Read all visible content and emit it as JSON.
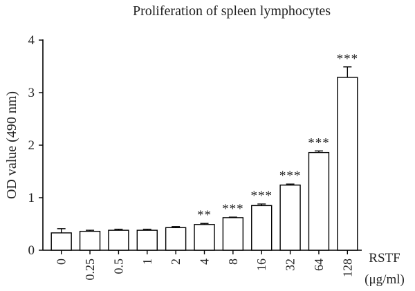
{
  "chart_data": {
    "type": "bar",
    "title": "Proliferation of spleen lymphocytes",
    "ylabel": "OD value (490 nm)",
    "xlabel": "RSTF",
    "xunit": "(μg/ml)",
    "ylim": [
      0,
      4
    ],
    "yticks": [
      "0",
      "1",
      "2",
      "3",
      "4"
    ],
    "categories": [
      "0",
      "0.25",
      "0.5",
      "1",
      "2",
      "4",
      "8",
      "16",
      "32",
      "64",
      "128"
    ],
    "values": [
      0.33,
      0.36,
      0.38,
      0.38,
      0.43,
      0.49,
      0.62,
      0.85,
      1.24,
      1.86,
      3.29
    ],
    "errors": [
      0.08,
      0.02,
      0.02,
      0.02,
      0.02,
      0.02,
      0.01,
      0.03,
      0.02,
      0.03,
      0.2
    ],
    "significance": [
      "",
      "",
      "",
      "",
      "",
      "**",
      "***",
      "***",
      "***",
      "***",
      "***"
    ],
    "grid": false,
    "colors": {
      "bar_fill": "#ffffff",
      "bar_stroke": "#000000"
    }
  }
}
